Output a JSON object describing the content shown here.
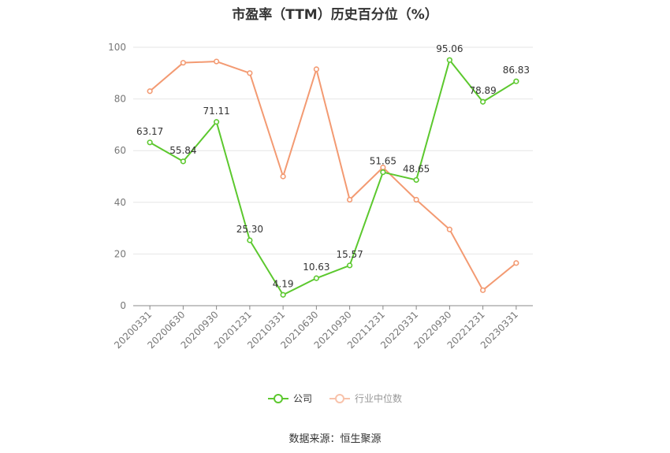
{
  "chart_data": {
    "type": "line",
    "title": "市盈率（TTM）历史百分位（%）",
    "categories": [
      "20200331",
      "20200630",
      "20200930",
      "20201231",
      "20210331",
      "20210630",
      "20210930",
      "20211231",
      "20220331",
      "20220930",
      "20221231",
      "20230331"
    ],
    "ylim": [
      0,
      100
    ],
    "yticks": [
      0,
      20,
      40,
      60,
      80,
      100
    ],
    "grid": true,
    "legend_position": "bottom",
    "series": [
      {
        "name": "公司",
        "color": "#5cc82e",
        "values": [
          63.17,
          55.84,
          71.11,
          25.3,
          4.19,
          10.63,
          15.57,
          51.65,
          48.65,
          95.06,
          78.89,
          86.83
        ],
        "labels": [
          "63.17",
          "55.84",
          "71.11",
          "25.30",
          "4.19",
          "10.63",
          "15.57",
          "51.65",
          "48.65",
          "95.06",
          "78.89",
          "86.83"
        ]
      },
      {
        "name": "行业中位数",
        "color": "#f39a72",
        "values": [
          83,
          94,
          94.5,
          90,
          50,
          91.5,
          41,
          53.5,
          41,
          29.5,
          6,
          16.5
        ]
      }
    ]
  },
  "source": "数据来源：恒生聚源"
}
